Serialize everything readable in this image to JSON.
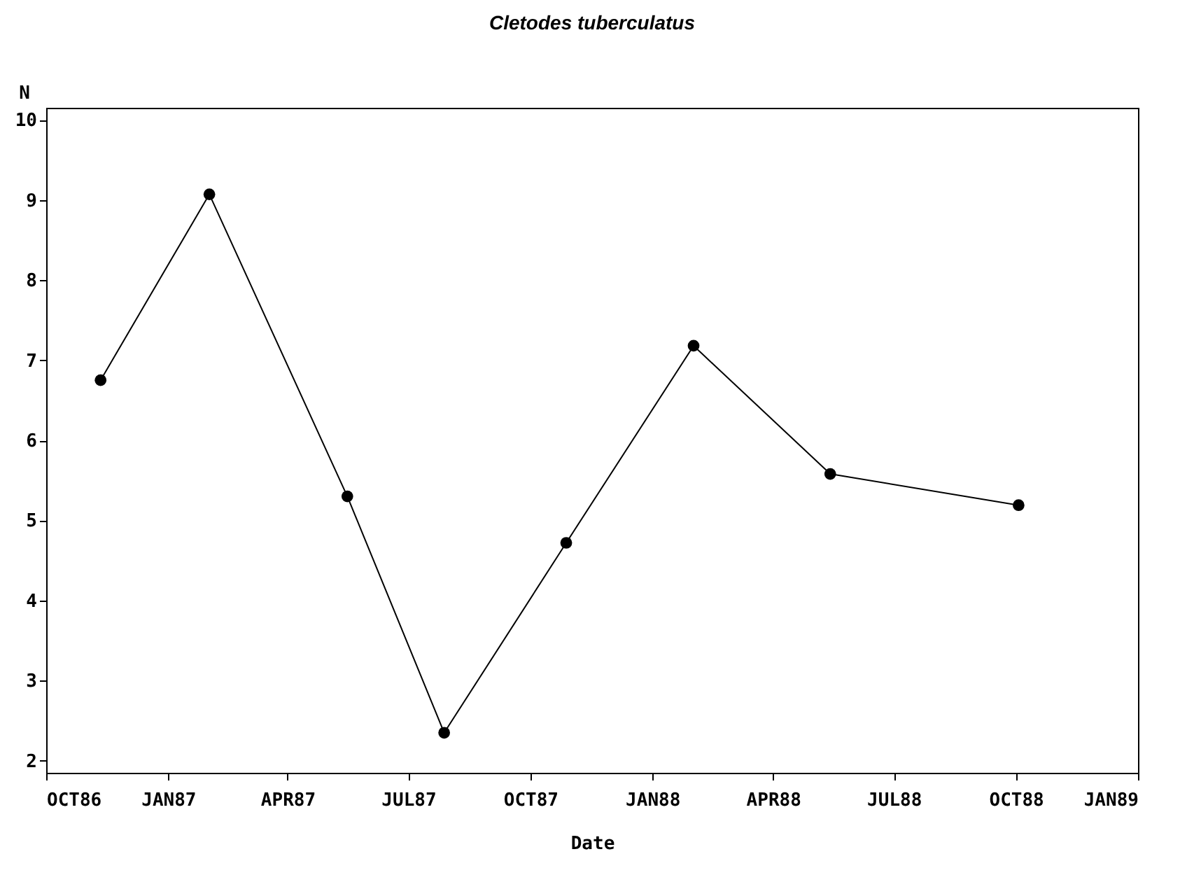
{
  "chart_data": {
    "type": "line",
    "title": "Cletodes tuberculatus",
    "xlabel": "Date",
    "ylabel": "N",
    "x": [
      "1986-11-11",
      "1987-02-01",
      "1987-05-16",
      "1987-07-28",
      "1987-10-28",
      "1988-02-01",
      "1988-05-14",
      "1988-10-03"
    ],
    "series": [
      {
        "color": "#000000",
        "values": [
          6.75,
          9.07,
          5.3,
          2.35,
          4.72,
          7.18,
          5.58,
          5.19
        ]
      }
    ],
    "xlim": [
      "1986-10-01",
      "1989-01-01"
    ],
    "xticks": [
      {
        "value": "1986-10-01",
        "label": "OCT86"
      },
      {
        "value": "1987-01-01",
        "label": "JAN87"
      },
      {
        "value": "1987-04-01",
        "label": "APR87"
      },
      {
        "value": "1987-07-01",
        "label": "JUL87"
      },
      {
        "value": "1987-10-01",
        "label": "OCT87"
      },
      {
        "value": "1988-01-01",
        "label": "JAN88"
      },
      {
        "value": "1988-04-01",
        "label": "APR88"
      },
      {
        "value": "1988-07-01",
        "label": "JUL88"
      },
      {
        "value": "1988-10-01",
        "label": "OCT88"
      },
      {
        "value": "1989-01-01",
        "label": "JAN89"
      }
    ],
    "ylim": [
      1.85,
      10.15
    ],
    "yticks": [
      2,
      3,
      4,
      5,
      6,
      7,
      8,
      9,
      10
    ],
    "grid": false,
    "marker": "circle",
    "line_style": "solid"
  }
}
